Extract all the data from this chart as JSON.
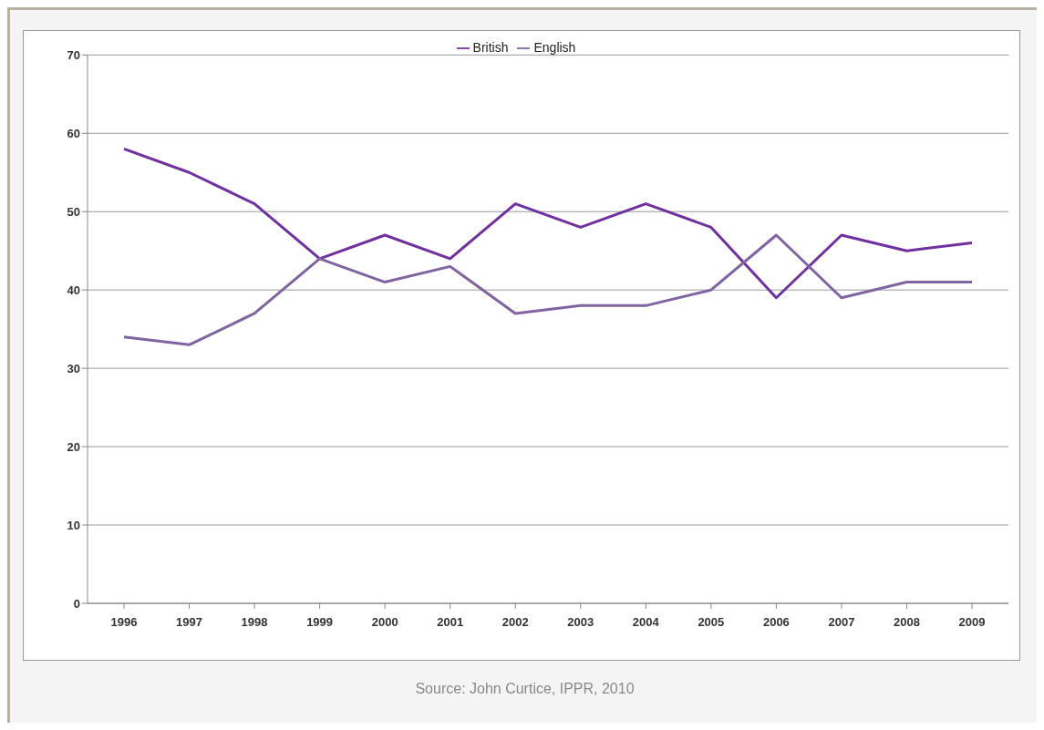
{
  "chart_data": {
    "type": "line",
    "categories": [
      "1996",
      "1997",
      "1998",
      "1999",
      "2000",
      "2001",
      "2002",
      "2003",
      "2004",
      "2005",
      "2006",
      "2007",
      "2008",
      "2009"
    ],
    "series": [
      {
        "name": "British",
        "color": "#7030a0",
        "values": [
          58,
          55,
          51,
          44,
          47,
          44,
          51,
          48,
          51,
          48,
          39,
          47,
          45,
          46
        ]
      },
      {
        "name": "English",
        "color": "#8064a2",
        "values": [
          34,
          33,
          37,
          44,
          41,
          43,
          37,
          38,
          38,
          40,
          47,
          39,
          41,
          41
        ]
      }
    ],
    "ylim": [
      0,
      70
    ],
    "yticks": [
      0,
      10,
      20,
      30,
      40,
      50,
      60,
      70
    ],
    "grid": "y",
    "legend": "top",
    "marker": "none",
    "line_style": "solid",
    "annotations": [
      "Source: John Curtice, IPPR, 2010"
    ]
  }
}
